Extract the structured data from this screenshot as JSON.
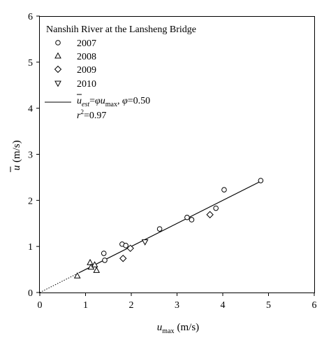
{
  "chart_data": {
    "type": "scatter",
    "title": "Nanshih River at the Lansheng Bridge",
    "xlabel": "u_max (m/s)",
    "ylabel": "ū (m/s)",
    "xlabel_parts": {
      "var": "u",
      "sub": "max",
      "unit": "(m/s)"
    },
    "ylabel_parts": {
      "var": "u",
      "unit": "(m/s)"
    },
    "xlim": [
      0,
      6
    ],
    "ylim": [
      0,
      6
    ],
    "xticks": [
      "0",
      "1",
      "2",
      "3",
      "4",
      "5",
      "6"
    ],
    "yticks": [
      "0",
      "1",
      "2",
      "3",
      "4",
      "5",
      "6"
    ],
    "grid": false,
    "legend_position": "top-left",
    "series": [
      {
        "name": "2007",
        "marker": "circle",
        "points": [
          [
            1.4,
            0.85
          ],
          [
            1.42,
            0.7
          ],
          [
            1.8,
            1.05
          ],
          [
            1.88,
            1.02
          ],
          [
            2.62,
            1.38
          ],
          [
            3.22,
            1.63
          ],
          [
            3.32,
            1.58
          ],
          [
            3.85,
            1.83
          ],
          [
            4.03,
            2.23
          ],
          [
            4.83,
            2.43
          ]
        ]
      },
      {
        "name": "2008",
        "marker": "triangle-up",
        "points": [
          [
            0.82,
            0.36
          ],
          [
            1.1,
            0.65
          ],
          [
            1.12,
            0.55
          ],
          [
            1.2,
            0.6
          ],
          [
            1.24,
            0.48
          ]
        ]
      },
      {
        "name": "2009",
        "marker": "diamond",
        "points": [
          [
            1.82,
            0.74
          ],
          [
            1.98,
            0.96
          ],
          [
            3.72,
            1.69
          ]
        ]
      },
      {
        "name": "2010",
        "marker": "triangle-down",
        "points": [
          [
            2.3,
            1.1
          ]
        ]
      }
    ],
    "fit": {
      "phi": 0.5,
      "r2": 0.97,
      "solid_range": [
        0.85,
        4.85
      ],
      "dotted_range": [
        0,
        0.85
      ],
      "equation": {
        "ubar": "u",
        "est_sub": "est",
        "eq_sign": "=",
        "phi_symbol": "φ",
        "u": "u",
        "max_sub": "max",
        "comma": ", ",
        "phi_eq": "=0.50",
        "r": "r",
        "r_sup": "2",
        "r_eq": "=0.97"
      }
    }
  }
}
